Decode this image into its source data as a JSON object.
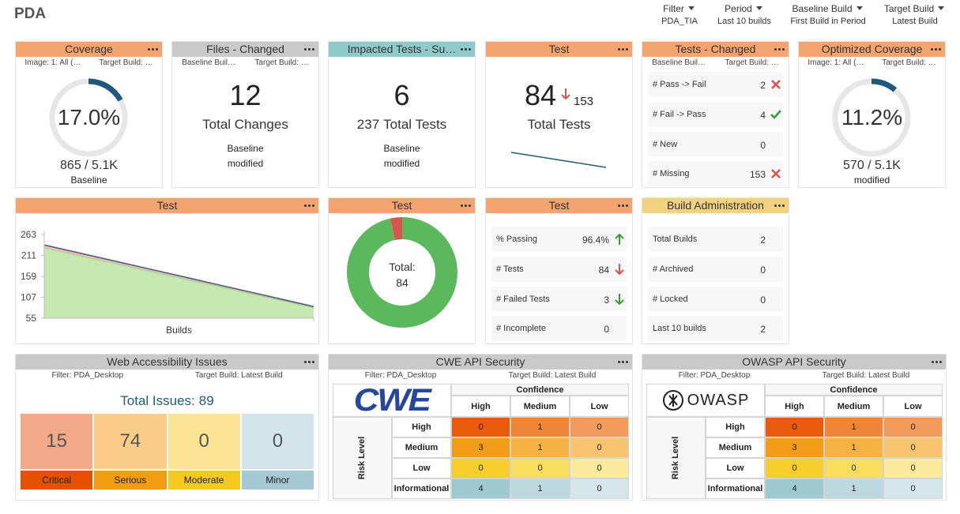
{
  "header": {
    "title": "PDA"
  },
  "filters": [
    {
      "label": "Filter",
      "value": "PDA_TIA"
    },
    {
      "label": "Period",
      "value": "Last 10 builds"
    },
    {
      "label": "Baseline Build",
      "value": "First Build in Period"
    },
    {
      "label": "Target Build",
      "value": "Latest Build"
    }
  ],
  "coverage": {
    "title": "Coverage",
    "color": "#f4a46f",
    "subtitle": [
      "Image: 1: All (…",
      "Target Build: …"
    ],
    "value": 17.0,
    "value_label": "17.0%",
    "arc_color": "#1f5a7a",
    "count": "865 / 5.1K",
    "note": "Baseline"
  },
  "files_changed": {
    "title": "Files - Changed",
    "color": "#c9c9c9",
    "subtitle": [
      "Baseline Buil…",
      "Target Build: …"
    ],
    "value": 12,
    "label": "Total Changes",
    "note": [
      "Baseline",
      "modified"
    ]
  },
  "impacted_tests": {
    "title": "Impacted Tests - Su…",
    "color": "#8fcaca",
    "value": 6,
    "total": 237,
    "label": "Total Tests",
    "note": [
      "Baseline",
      "modified"
    ]
  },
  "test_summary": {
    "title": "Test",
    "color": "#f4a46f",
    "value": 84,
    "previous": 153,
    "trend": "down",
    "trend_color": "#d9534f",
    "label": "Total Tests",
    "sparkline": [
      153,
      84
    ],
    "sparkline_color": "#1f5a7a"
  },
  "tests_changed": {
    "title": "Tests - Changed",
    "color": "#f4a46f",
    "subtitle": [
      "Baseline Buil…",
      "Target Build: …"
    ],
    "rows": [
      {
        "label": "# Pass -> Fail",
        "value": 2,
        "icon": "cross",
        "icon_color": "#d9534f"
      },
      {
        "label": "# Fail -> Pass",
        "value": 4,
        "icon": "check",
        "icon_color": "#3a9a3a"
      },
      {
        "label": "# New",
        "value": 0
      },
      {
        "label": "# Missing",
        "value": 153,
        "icon": "cross",
        "icon_color": "#d9534f"
      }
    ]
  },
  "optimized_coverage": {
    "title": "Optimized Coverage",
    "color": "#f4a46f",
    "subtitle": [
      "Image: 1: All (…",
      "Target Build: …"
    ],
    "value": 11.2,
    "value_label": "11.2%",
    "arc_color": "#1f5a7a",
    "count": "570 / 5.1K",
    "note": "modified"
  },
  "test_history": {
    "title": "Test",
    "color": "#f4a46f",
    "type": "area",
    "x_label": "Builds",
    "ylim": [
      55,
      263
    ],
    "yticks": [
      263,
      211,
      159,
      107,
      55
    ],
    "series": [
      {
        "color": "#f5bcc4",
        "line_color": "#4a5b82",
        "values": [
          237,
          220,
          203,
          186,
          169,
          152,
          135,
          118,
          101,
          84
        ]
      },
      {
        "color": "#c4e8b0",
        "line_color": "#9bd37e",
        "values": [
          230,
          213,
          197,
          180,
          164,
          147,
          131,
          114,
          98,
          81
        ]
      }
    ]
  },
  "test_donut": {
    "title": "Test",
    "color": "#f4a46f",
    "type": "pie",
    "center_label": "Total:",
    "total": 84,
    "values": [
      81,
      3
    ],
    "colors": [
      "#5cb85c",
      "#d9534f"
    ]
  },
  "test_stats": {
    "title": "Test",
    "color": "#f4a46f",
    "rows": [
      {
        "label": "% Passing",
        "value": 96.4,
        "value_label": "96.4%",
        "trend": "up",
        "trend_color": "#3a9a3a"
      },
      {
        "label": "# Tests",
        "value": 84,
        "trend": "down",
        "trend_color": "#d9534f"
      },
      {
        "label": "# Failed Tests",
        "value": 3,
        "trend": "down",
        "trend_color": "#3a9a3a"
      },
      {
        "label": "# Incomplete",
        "value": 0
      }
    ]
  },
  "build_admin": {
    "title": "Build Administration",
    "color": "#f2d27e",
    "rows": [
      {
        "label": "Total Builds",
        "value": 2
      },
      {
        "label": "# Archived",
        "value": 0
      },
      {
        "label": "# Locked",
        "value": 0
      },
      {
        "label": "Last 10 builds",
        "value": 2
      }
    ]
  },
  "web_accessibility": {
    "title": "Web Accessibility Issues",
    "color": "#c9c9c9",
    "subtitle": [
      "Filter: PDA_Desktop",
      "Target Build: Latest Build"
    ],
    "total_label": "Total Issues:",
    "total": 89,
    "total_color": "#1a5c7a",
    "issues": [
      {
        "label": "Critical",
        "value": 15,
        "color": "#f3a888",
        "bar_color": "#e65100"
      },
      {
        "label": "Serious",
        "value": 74,
        "color": "#fbcd88",
        "bar_color": "#f29d0f"
      },
      {
        "label": "Moderate",
        "value": 0,
        "color": "#fbe494",
        "bar_color": "#f6c921"
      },
      {
        "label": "Minor",
        "value": 0,
        "color": "#d3e4ea",
        "bar_color": "#a6c8d2"
      }
    ]
  },
  "cwe": {
    "title": "CWE API Security",
    "color": "#c9c9c9",
    "subtitle": [
      "Filter: PDA_Desktop",
      "Target Build: Latest Build"
    ],
    "logo": "CWE",
    "column_header": "Confidence",
    "columns": [
      "High",
      "Medium",
      "Low"
    ],
    "row_header": "Risk Level",
    "rows": [
      "High",
      "Medium",
      "Low",
      "Informational"
    ],
    "cells": [
      [
        0,
        1,
        0
      ],
      [
        3,
        1,
        0
      ],
      [
        0,
        0,
        0
      ],
      [
        4,
        1,
        0
      ]
    ],
    "cell_colors": [
      [
        "#e85a0c",
        "#ef8637",
        "#f29a5c"
      ],
      [
        "#f39c1a",
        "#f6b143",
        "#f8c470"
      ],
      [
        "#f6cf2c",
        "#f9de5e",
        "#fbe99c"
      ],
      [
        "#9ec9d2",
        "#bcd9df",
        "#d5e6ea"
      ]
    ]
  },
  "owasp": {
    "title": "OWASP API Security",
    "color": "#c9c9c9",
    "subtitle": [
      "Filter: PDA_Desktop",
      "Target Build: Latest Build"
    ],
    "logo": "OWASP",
    "column_header": "Confidence",
    "columns": [
      "High",
      "Medium",
      "Low"
    ],
    "row_header": "Risk Level",
    "rows": [
      "High",
      "Medium",
      "Low",
      "Informational"
    ],
    "cells": [
      [
        0,
        1,
        0
      ],
      [
        3,
        1,
        0
      ],
      [
        0,
        0,
        0
      ],
      [
        4,
        1,
        0
      ]
    ],
    "cell_colors": [
      [
        "#e85a0c",
        "#ef8637",
        "#f29a5c"
      ],
      [
        "#f39c1a",
        "#f6b143",
        "#f8c470"
      ],
      [
        "#f6cf2c",
        "#f9de5e",
        "#fbe99c"
      ],
      [
        "#9ec9d2",
        "#bcd9df",
        "#d5e6ea"
      ]
    ]
  }
}
